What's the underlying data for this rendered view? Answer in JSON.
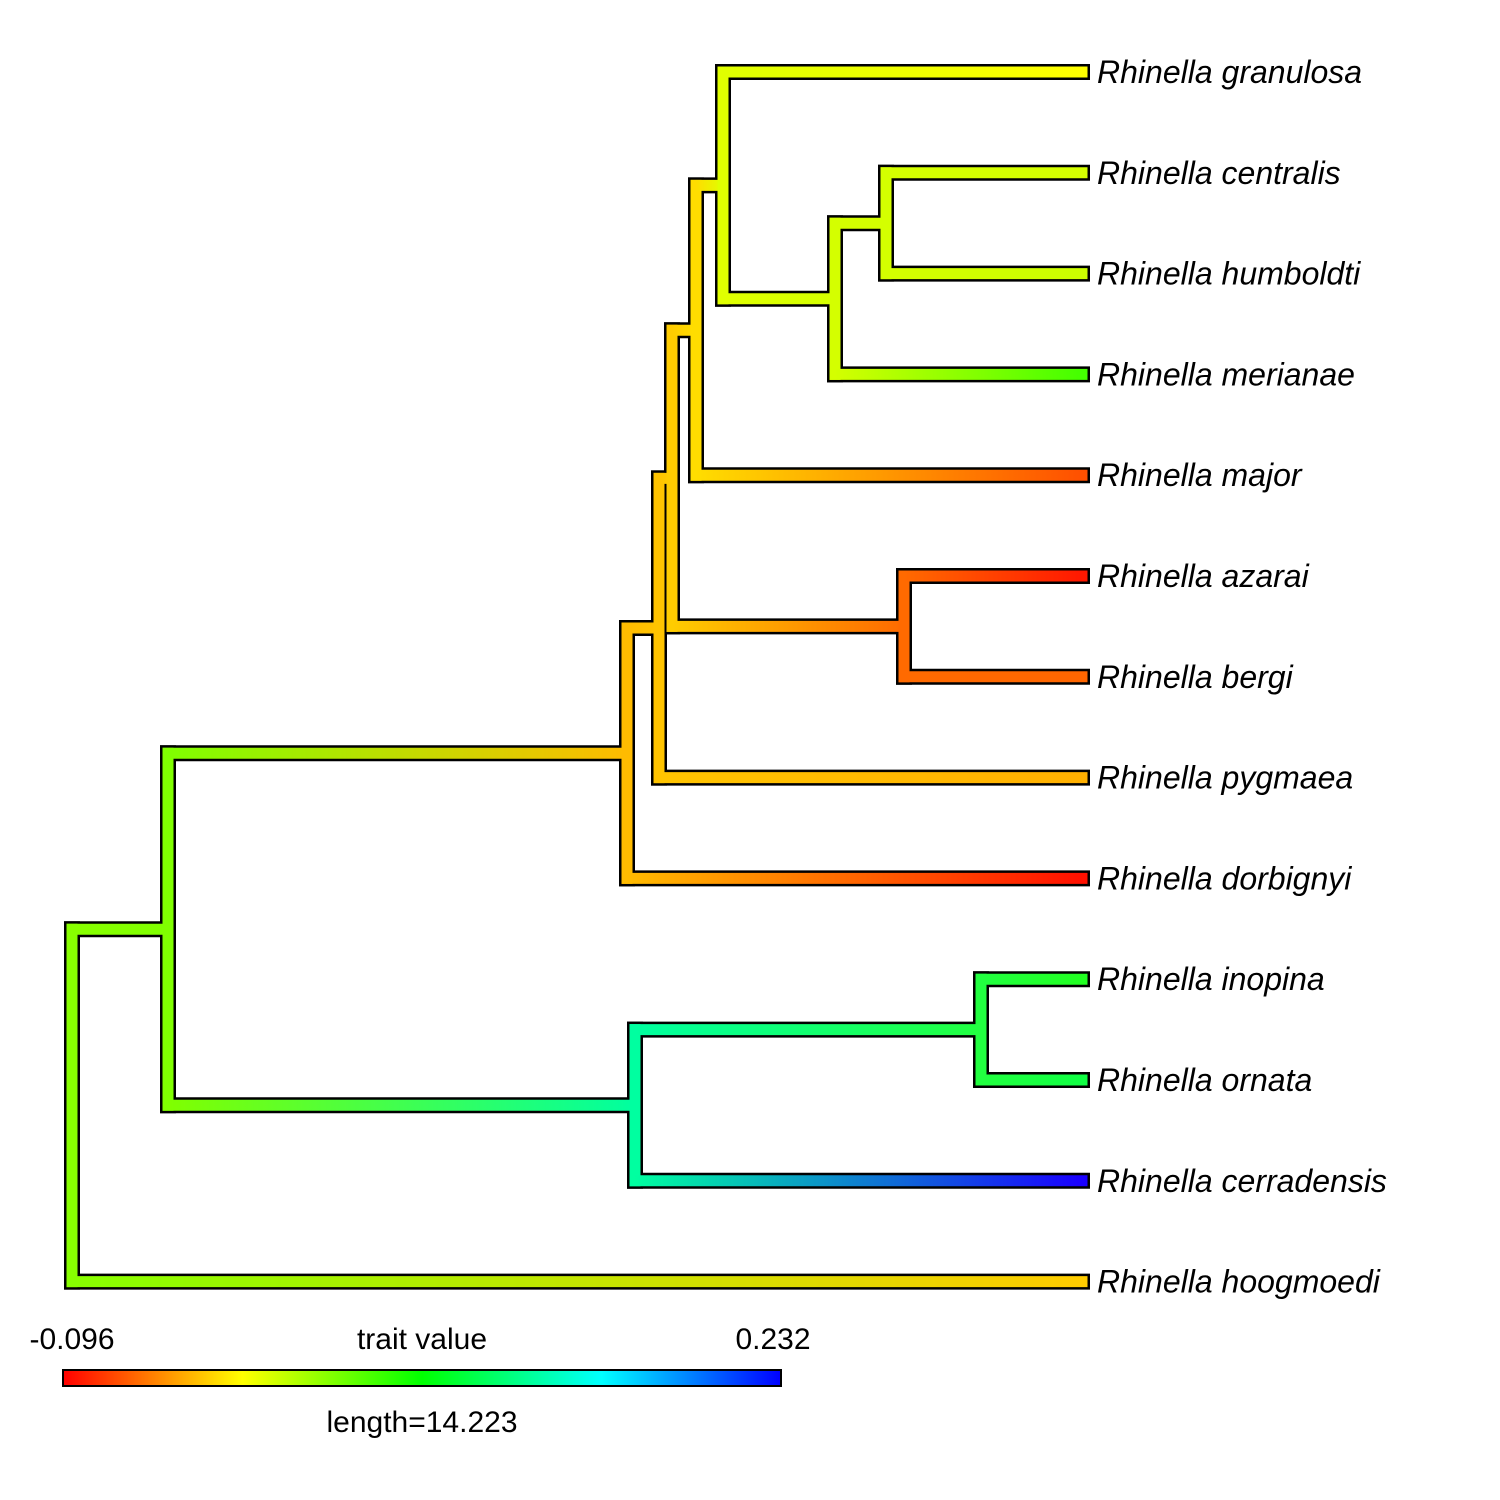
{
  "legend": {
    "min_label": "-0.096",
    "max_label": "0.232",
    "title": "trait value",
    "length_label": "length=14.223",
    "gradient_colors": [
      "#ff0000",
      "#ff8000",
      "#ffff00",
      "#80ff00",
      "#00ff00",
      "#00ff80",
      "#00ffff",
      "#0080ff",
      "#0000ff"
    ]
  },
  "tips": [
    {
      "name": "Rhinella granulosa",
      "color": "#ffff00"
    },
    {
      "name": "Rhinella centralis",
      "color": "#d4ff00"
    },
    {
      "name": "Rhinella humboldti",
      "color": "#ccff00"
    },
    {
      "name": "Rhinella merianae",
      "color": "#44ff00"
    },
    {
      "name": "Rhinella major",
      "color": "#ff5000"
    },
    {
      "name": "Rhinella azarai",
      "color": "#ff1800"
    },
    {
      "name": "Rhinella bergi",
      "color": "#ff6600"
    },
    {
      "name": "Rhinella pygmaea",
      "color": "#ffb000"
    },
    {
      "name": "Rhinella dorbignyi",
      "color": "#ff1000"
    },
    {
      "name": "Rhinella inopina",
      "color": "#22ff22"
    },
    {
      "name": "Rhinella ornata",
      "color": "#11ff44"
    },
    {
      "name": "Rhinella cerradensis",
      "color": "#1a00ff"
    },
    {
      "name": "Rhinella hoogmoedi",
      "color": "#ffcc00"
    }
  ],
  "internal_colors": {
    "root": "#88ff00",
    "ingroup": "#80ff00",
    "core": "#ffbb00",
    "clade_a": "#ffc400",
    "clade_b": "#ffcc00",
    "clade_c": "#ffdd00",
    "clade_d": "#e0ff00",
    "centralis_humboldti": "#d4ff00",
    "azarai_bergi": "#ff6a00",
    "southern": "#00ffa0",
    "inopina_ornata": "#22ff40"
  }
}
